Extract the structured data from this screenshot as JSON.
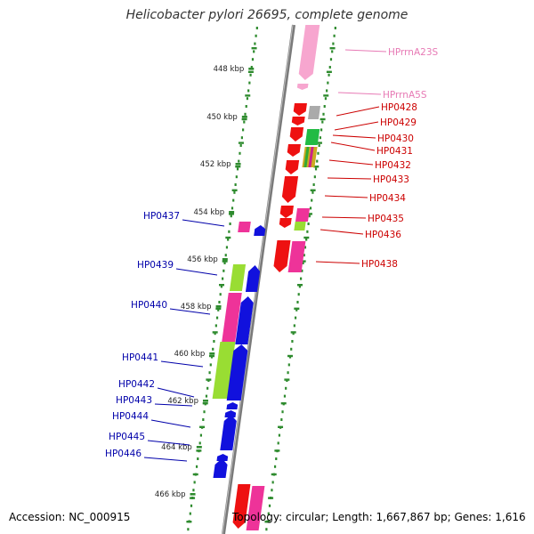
{
  "title": "Helicobacter pylori 26695, complete genome",
  "accession": "Accession: NC_000915",
  "summary": "Topology: circular; Length: 1,667,867 bp; Genes: 1,616",
  "colors": {
    "backbone": "#808080",
    "tick": "#2e8b2e",
    "forward_label": "#cc0000",
    "reverse_label": "#0000aa",
    "rrna_label": "#e77ab5",
    "red": "#ee1111",
    "pink": "#ee3399",
    "blue": "#1111dd",
    "lime": "#99dd33",
    "light_pink": "#f7a6cf",
    "grey": "#aaaaaa",
    "green": "#22bb44"
  },
  "scale_labels": [
    "448 kbp",
    "450 kbp",
    "452 kbp",
    "454 kbp",
    "456 kbp",
    "458 kbp",
    "460 kbp",
    "462 kbp",
    "464 kbp",
    "466 kbp"
  ],
  "forward_genes": [
    {
      "label": "HPrrnA23S",
      "type": "rrna"
    },
    {
      "label": "HPrrnA5S",
      "type": "rrna"
    },
    {
      "label": "HP0428",
      "type": "gene"
    },
    {
      "label": "HP0429",
      "type": "gene"
    },
    {
      "label": "HP0430",
      "type": "gene"
    },
    {
      "label": "HP0431",
      "type": "gene"
    },
    {
      "label": "HP0432",
      "type": "gene"
    },
    {
      "label": "HP0433",
      "type": "gene"
    },
    {
      "label": "HP0434",
      "type": "gene"
    },
    {
      "label": "HP0435",
      "type": "gene"
    },
    {
      "label": "HP0436",
      "type": "gene"
    },
    {
      "label": "HP0438",
      "type": "gene"
    }
  ],
  "reverse_genes": [
    {
      "label": "HP0437"
    },
    {
      "label": "HP0439"
    },
    {
      "label": "HP0440"
    },
    {
      "label": "HP0441"
    },
    {
      "label": "HP0442"
    },
    {
      "label": "HP0443"
    },
    {
      "label": "HP0444"
    },
    {
      "label": "HP0445"
    },
    {
      "label": "HP0446"
    }
  ]
}
